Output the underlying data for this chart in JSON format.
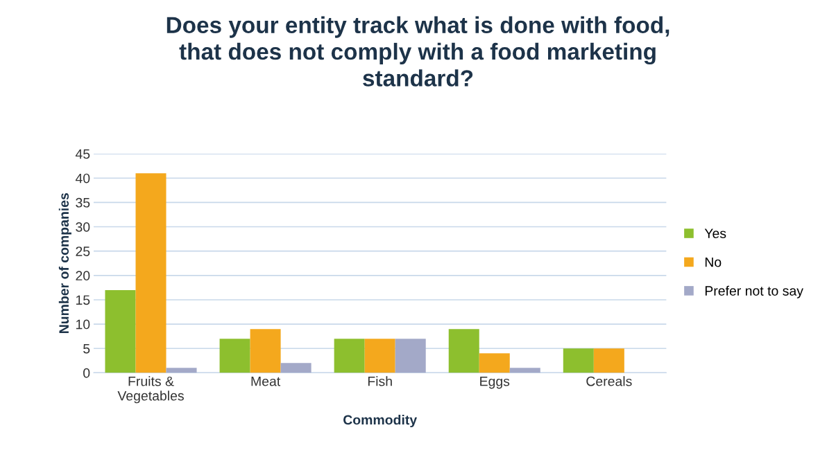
{
  "chart_data": {
    "type": "bar",
    "title": "Does your entity track what is done with food,\nthat does not comply with a food marketing\nstandard?",
    "xlabel": "Commodity",
    "ylabel": "Number of companies",
    "categories": [
      "Fruits &\nVegetables",
      "Meat",
      "Fish",
      "Eggs",
      "Cereals"
    ],
    "series": [
      {
        "name": "Yes",
        "color": "#8dbf2e",
        "values": [
          17,
          7,
          7,
          9,
          5
        ]
      },
      {
        "name": "No",
        "color": "#f4a81d",
        "values": [
          41,
          9,
          7,
          4,
          5
        ]
      },
      {
        "name": "Prefer not to say",
        "color": "#a3a9c8",
        "values": [
          1,
          2,
          7,
          1,
          0
        ]
      }
    ],
    "ylim": [
      0,
      45
    ],
    "yticks": [
      0,
      5,
      10,
      15,
      20,
      25,
      30,
      35,
      40,
      45
    ],
    "grid": "y",
    "legend": "right"
  }
}
